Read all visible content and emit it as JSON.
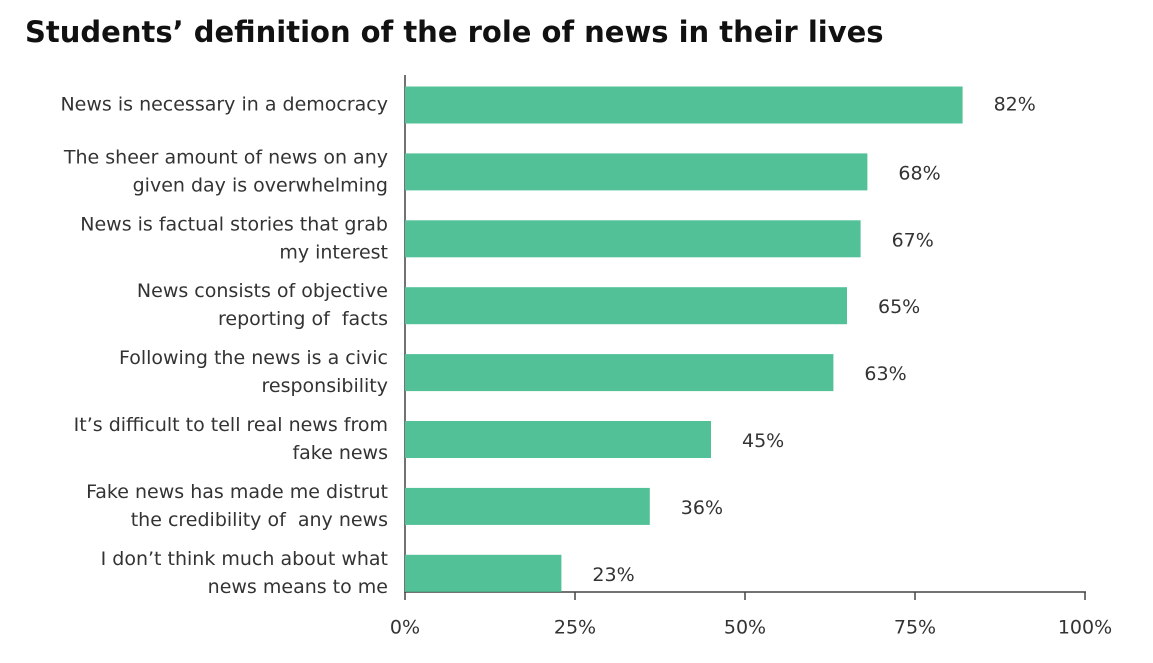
{
  "chart_data": {
    "type": "bar",
    "orientation": "horizontal",
    "title": "Students’ definition of the role of news in their lives",
    "categories": [
      [
        "News is necessary in a democracy"
      ],
      [
        "The sheer amount of news on any",
        "given day is overwhelming"
      ],
      [
        "News is factual stories that grab",
        "my interest"
      ],
      [
        "News consists of objective",
        "reporting of  facts"
      ],
      [
        "Following the news is a civic",
        "responsibility"
      ],
      [
        "It’s difficult to tell real news from",
        "fake news"
      ],
      [
        "Fake news has made me distrut",
        "the credibility of  any news"
      ],
      [
        "I don’t think much about what",
        "news means to me"
      ]
    ],
    "values": [
      82,
      68,
      67,
      65,
      63,
      45,
      36,
      23
    ],
    "value_labels": [
      "82%",
      "68%",
      "67%",
      "65%",
      "63%",
      "45%",
      "36%",
      "23%"
    ],
    "color": "#52c197",
    "xlim": [
      0,
      100
    ],
    "xticks": [
      {
        "value": 0,
        "label": "0%"
      },
      {
        "value": 25,
        "label": "25%"
      },
      {
        "value": 50,
        "label": "50%"
      },
      {
        "value": 75,
        "label": "75%"
      },
      {
        "value": 100,
        "label": "100%"
      }
    ],
    "grid": false
  }
}
